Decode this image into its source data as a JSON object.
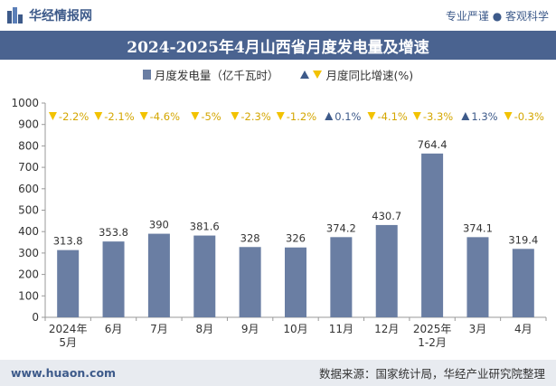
{
  "header": {
    "brand": "华经情报网",
    "slogan": "专业严谨 ● 客观科学"
  },
  "chart_title": "2024-2025年4月山西省月度发电量及增速",
  "legend": {
    "bar_label": "月度发电量（亿千瓦时）",
    "growth_label": "月度同比增速(%)"
  },
  "footer": {
    "website": "www.huaon.com",
    "source": "数据来源：国家统计局，华经产业研究院整理"
  },
  "colors": {
    "bar": "#6a7ea3",
    "up": "#3d5a8a",
    "down": "#f2c200",
    "title_bg": "#4a6390"
  },
  "chart_data": {
    "type": "bar",
    "categories": [
      "2024年\n5月",
      "6月",
      "7月",
      "8月",
      "9月",
      "10月",
      "11月",
      "12月",
      "2025年\n1-2月",
      "3月",
      "4月"
    ],
    "series": [
      {
        "name": "月度发电量（亿千瓦时）",
        "values": [
          313.8,
          353.8,
          390,
          381.6,
          328,
          326,
          374.2,
          430.7,
          764.4,
          374.1,
          319.4
        ]
      },
      {
        "name": "月度同比增速(%)",
        "values": [
          -2.2,
          -2.1,
          -4.6,
          -5,
          -2.3,
          -1.2,
          0.1,
          -4.1,
          -3.3,
          1.3,
          -0.3
        ]
      }
    ],
    "value_labels": [
      "313.8",
      "353.8",
      "390",
      "381.6",
      "328",
      "326",
      "374.2",
      "430.7",
      "764.4",
      "374.1",
      "319.4"
    ],
    "growth_labels": [
      "-2.2%",
      "-2.1%",
      "-4.6%",
      "-5%",
      "-2.3%",
      "-1.2%",
      "0.1%",
      "-4.1%",
      "-3.3%",
      "1.3%",
      "-0.3%"
    ],
    "ylim": [
      0,
      1000
    ],
    "yticks": [
      0,
      100,
      200,
      300,
      400,
      500,
      600,
      700,
      800,
      900,
      1000
    ],
    "ytick_labels": [
      "0",
      "100",
      "200",
      "300",
      "400",
      "500",
      "600",
      "700",
      "800",
      "900",
      "1000"
    ],
    "grid": false,
    "legend_position": "top"
  }
}
